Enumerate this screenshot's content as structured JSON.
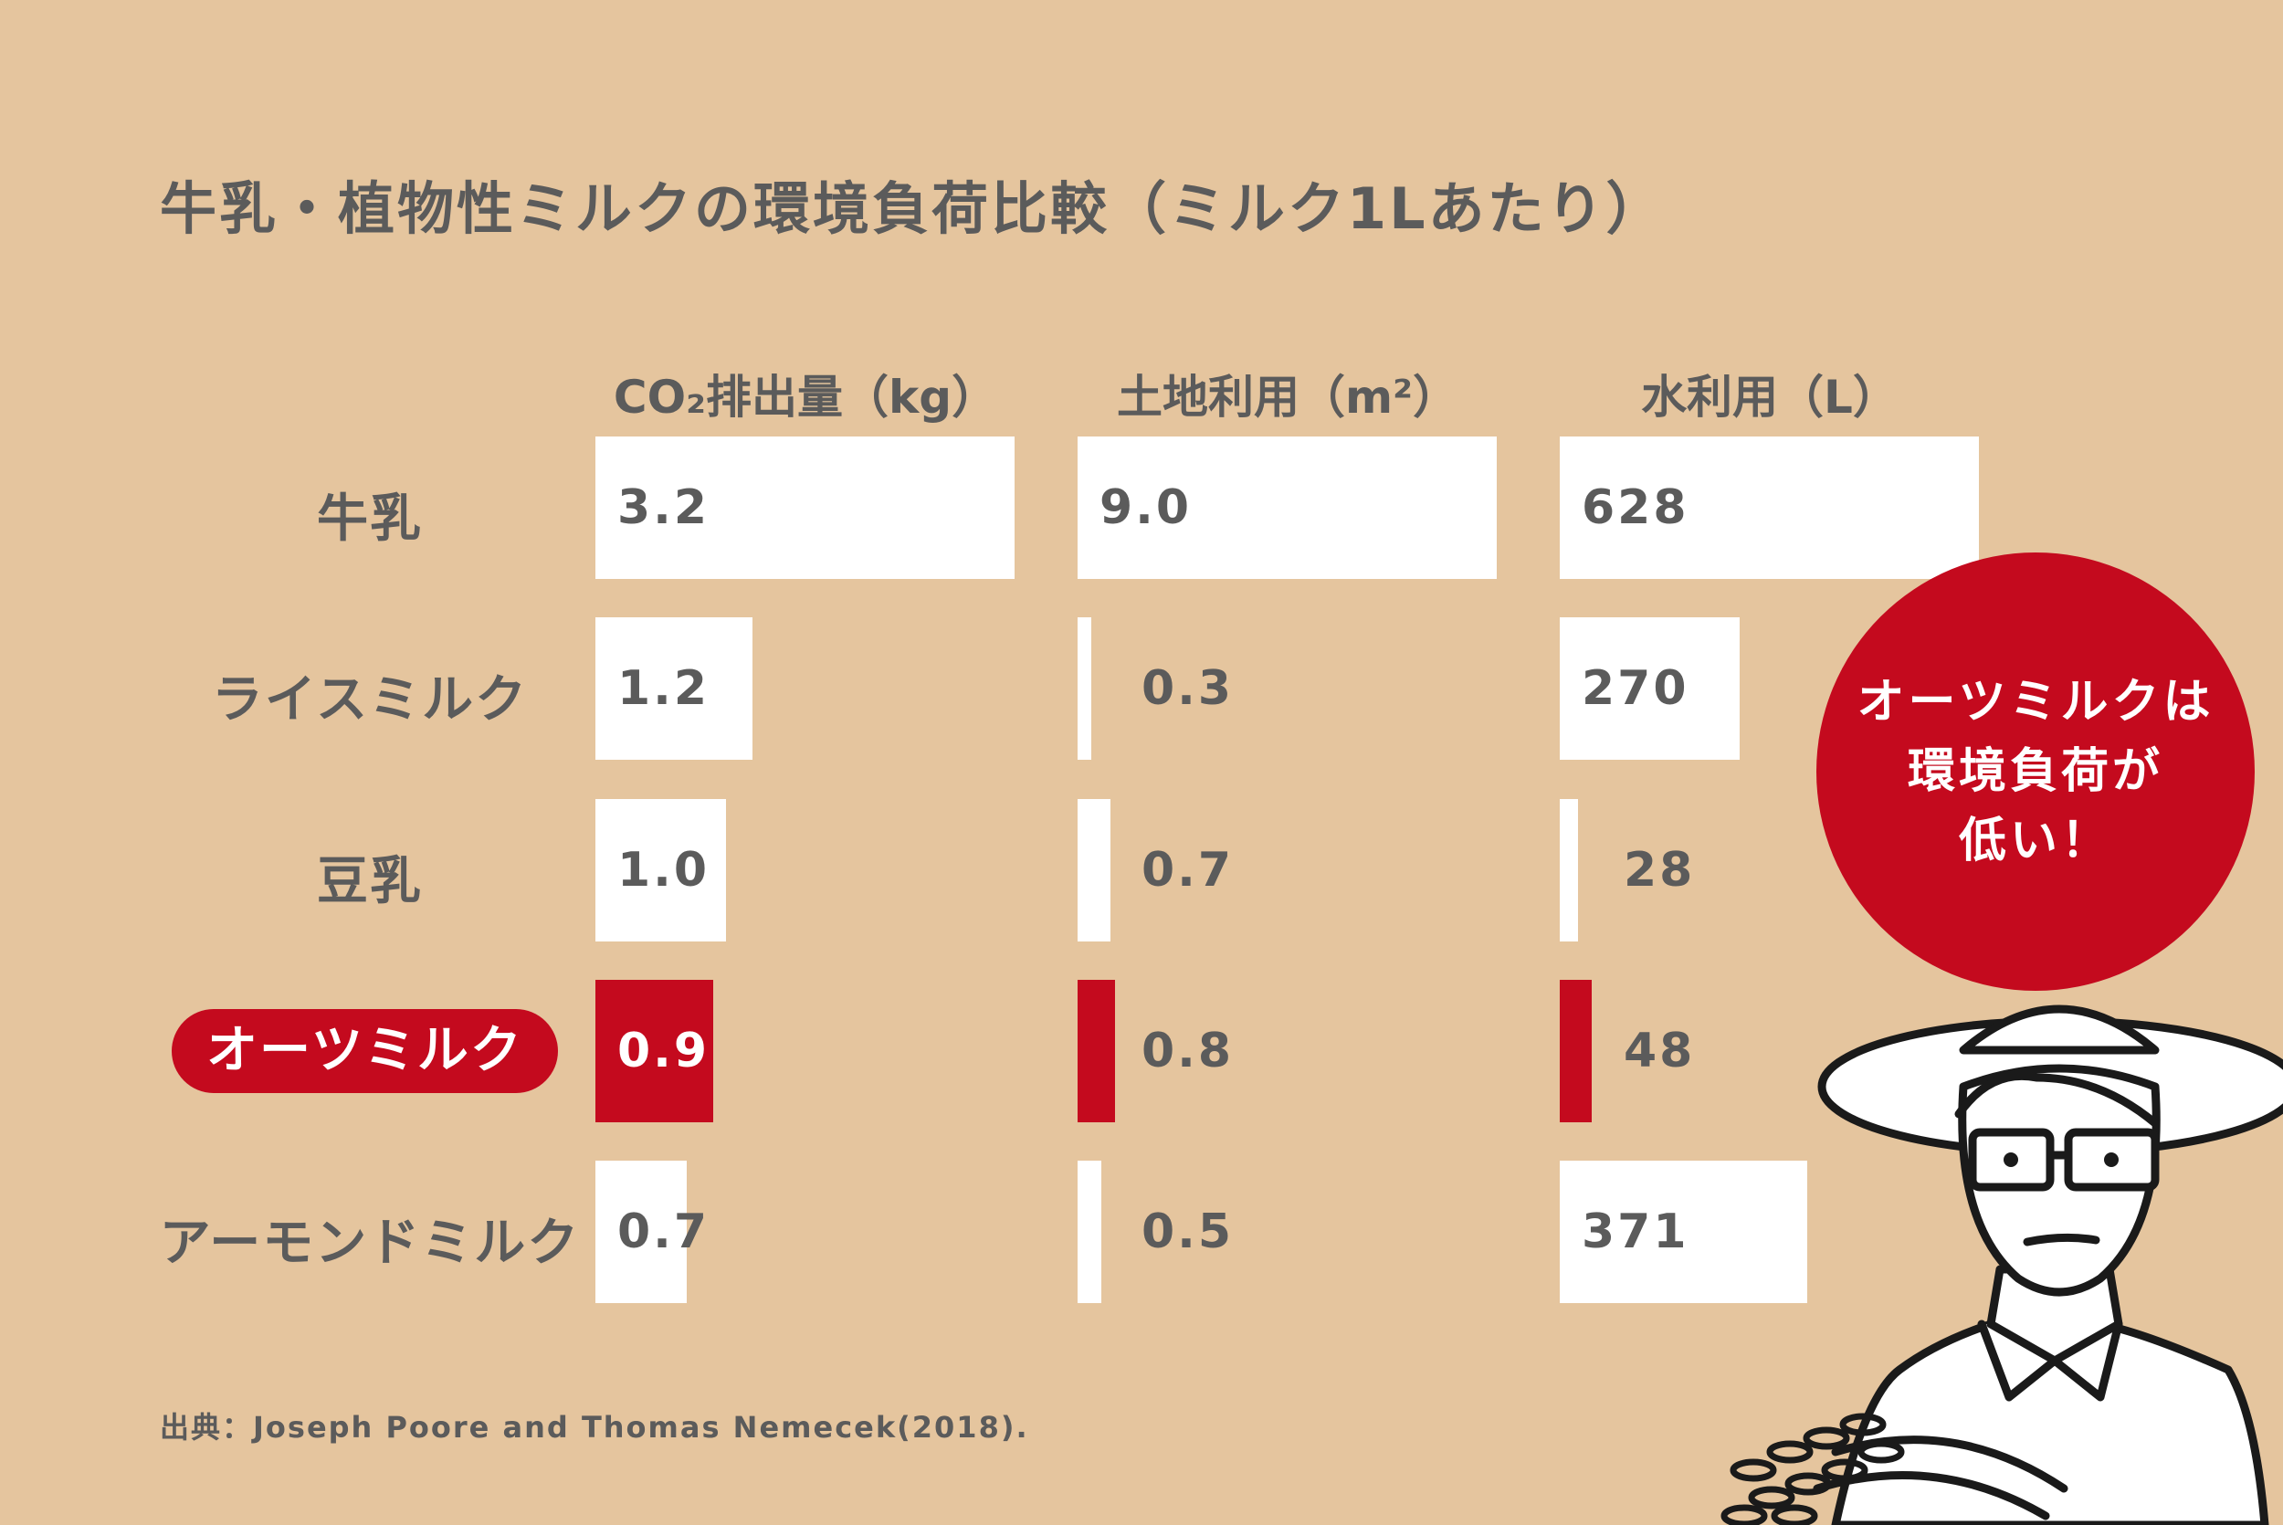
{
  "chart_data": {
    "type": "bar",
    "orientation": "horizontal",
    "title": "牛乳・植物性ミルクの環境負荷比較（ミルク1Lあたり）",
    "categories": [
      "牛乳",
      "ライスミルク",
      "豆乳",
      "オーツミルク",
      "アーモンドミルク"
    ],
    "highlight_category": "オーツミルク",
    "panels": [
      {
        "header": "CO₂排出量（kg）",
        "values": [
          3.2,
          1.2,
          1.0,
          0.9,
          0.7
        ],
        "labels": [
          "3.2",
          "1.2",
          "1.0",
          "0.9",
          "0.7"
        ],
        "max": 3.2
      },
      {
        "header": "土地利用（m²）",
        "values": [
          9.0,
          0.3,
          0.7,
          0.8,
          0.5
        ],
        "labels": [
          "9.0",
          "0.3",
          "0.7",
          "0.8",
          "0.5"
        ],
        "max": 9.0
      },
      {
        "header": "水利用（L）",
        "values": [
          628,
          270,
          28,
          48,
          371
        ],
        "labels": [
          "628",
          "270",
          "28",
          "48",
          "371"
        ],
        "max": 628
      }
    ],
    "colors": {
      "background": "#e5c59e",
      "bar": "#ffffff",
      "highlight": "#c40a1e",
      "text": "#5b5b5b"
    },
    "grid": false
  },
  "callout": [
    "オーツミルクは",
    "環境負荷が",
    "低い！"
  ],
  "source": "出典：Joseph Poore and Thomas Nemecek(2018)."
}
